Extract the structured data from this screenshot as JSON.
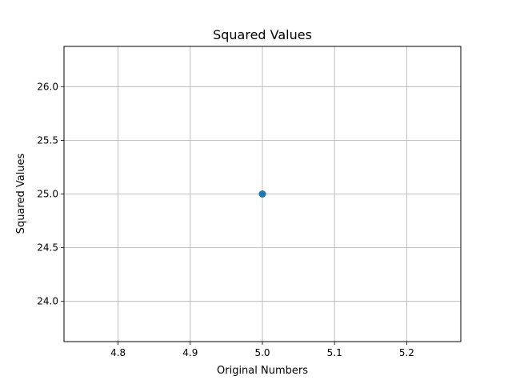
{
  "chart_data": {
    "type": "scatter",
    "title": "Squared Values",
    "xlabel": "Original Numbers",
    "ylabel": "Squared Values",
    "x": [
      5.0
    ],
    "series": [
      {
        "values": [
          25.0
        ],
        "color": "#1f77b4",
        "marker": "circle"
      }
    ],
    "xlim": [
      4.725,
      5.275
    ],
    "ylim": [
      23.625,
      26.375
    ],
    "xticks": [
      {
        "value": 4.8,
        "label": "4.8"
      },
      {
        "value": 4.9,
        "label": "4.9"
      },
      {
        "value": 5.0,
        "label": "5.0"
      },
      {
        "value": 5.1,
        "label": "5.1"
      },
      {
        "value": 5.2,
        "label": "5.2"
      }
    ],
    "yticks": [
      {
        "value": 24.0,
        "label": "24.0"
      },
      {
        "value": 24.5,
        "label": "24.5"
      },
      {
        "value": 25.0,
        "label": "25.0"
      },
      {
        "value": 25.5,
        "label": "25.5"
      },
      {
        "value": 26.0,
        "label": "26.0"
      }
    ],
    "grid": true,
    "legend": false
  }
}
